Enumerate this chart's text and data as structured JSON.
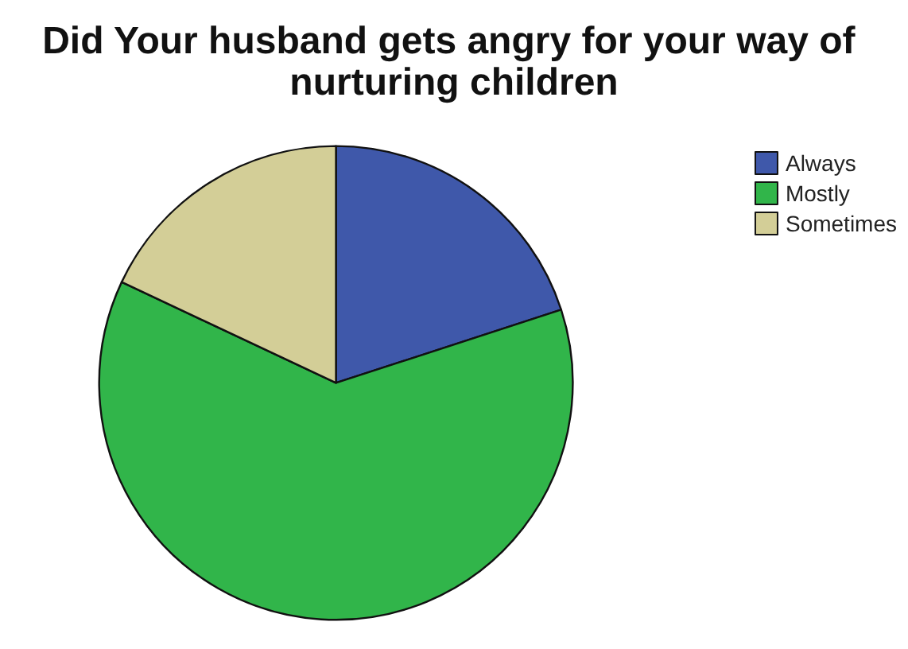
{
  "chart_data": {
    "type": "pie",
    "title": "Did Your husband gets angry for your way of nurturing children",
    "categories": [
      "Always",
      "Mostly",
      "Sometimes"
    ],
    "values": [
      20,
      62,
      18
    ],
    "colors": [
      "#3f58aa",
      "#31b54a",
      "#d3ce97"
    ],
    "legend": "top right"
  }
}
